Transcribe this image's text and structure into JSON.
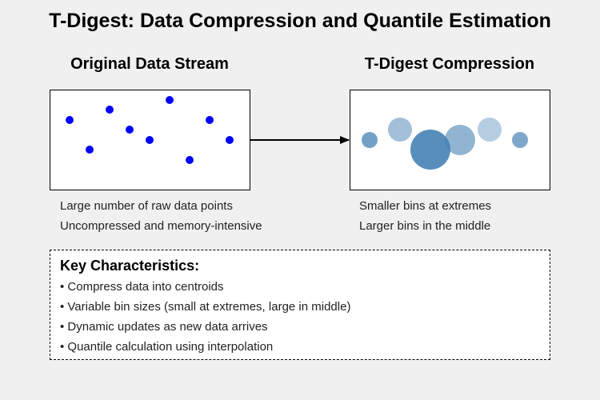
{
  "title": "T-Digest: Data Compression and Quantile Estimation",
  "left_panel": {
    "heading": "Original Data Stream",
    "captions": [
      "Large number of raw data points",
      "Uncompressed and memory-intensive"
    ],
    "point_color": "#0000ff"
  },
  "right_panel": {
    "heading": "T-Digest Compression",
    "captions": [
      "Smaller bins at extremes",
      "Larger bins in the middle"
    ],
    "centroid_color": "#4682b4"
  },
  "key": {
    "title": "Key Characteristics:",
    "items": [
      "• Compress data into centroids",
      "• Variable bin sizes (small at extremes, large in middle)",
      "• Dynamic updates as new data arrives",
      "• Quantile calculation using interpolation"
    ]
  }
}
